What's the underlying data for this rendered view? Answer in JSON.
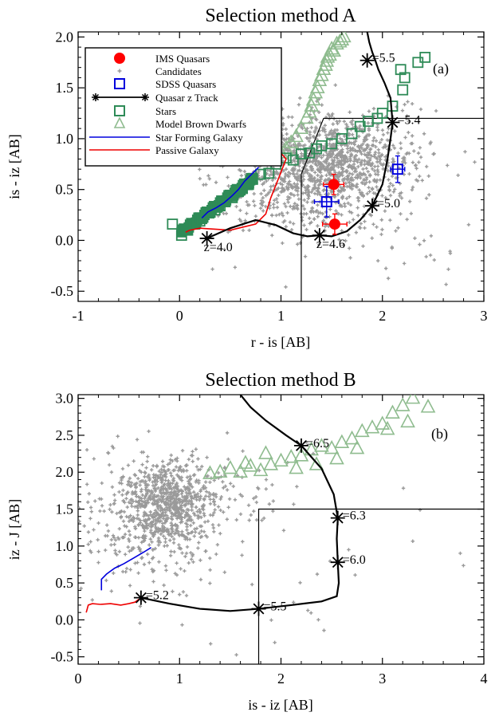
{
  "chart_data": [
    {
      "type": "scatter",
      "title": "Selection method A",
      "panel_label": "(a)",
      "xlabel": "r - is [AB]",
      "ylabel": "is - iz [AB]",
      "xlim": [
        -1,
        3
      ],
      "ylim": [
        -0.6,
        2.05
      ],
      "xticks": [
        -1,
        0,
        1,
        2,
        3
      ],
      "xtick_labels": [
        "-1",
        "0",
        "1",
        "2",
        "3"
      ],
      "yticks": [
        -0.5,
        0.0,
        0.5,
        1.0,
        1.5,
        2.0
      ],
      "ytick_labels": [
        "-0.5",
        "0.0",
        "0.5",
        "1.0",
        "1.5",
        "2.0"
      ],
      "legend_placement": "top-left",
      "legend": [
        {
          "label": "IMS Quasars",
          "symbol": "filled-circle",
          "color": "#ff0000"
        },
        {
          "label": "Candidates",
          "symbol": "plus",
          "color": "#999999"
        },
        {
          "label": "SDSS Quasars",
          "symbol": "open-square",
          "color": "#0000dd"
        },
        {
          "label": "Quasar z Track",
          "symbol": "line-asterisk",
          "color": "#000000"
        },
        {
          "label": "Stars",
          "symbol": "open-square",
          "color": "#2e8b57"
        },
        {
          "label": "Model Brown Dwarfs",
          "symbol": "open-triangle",
          "color": "#8fbc8f"
        },
        {
          "label": "Star Forming Galaxy",
          "symbol": "line",
          "color": "#0000dd"
        },
        {
          "label": "Passive Galaxy",
          "symbol": "line",
          "color": "#ee0000"
        }
      ],
      "selection_box": [
        [
          1.2,
          -0.6
        ],
        [
          1.2,
          0.65
        ],
        [
          1.42,
          1.2
        ],
        [
          3,
          1.2
        ]
      ],
      "quasar_track": {
        "x": [
          0.27,
          0.5,
          0.75,
          0.95,
          1.12,
          1.26,
          1.38,
          1.5,
          1.65,
          1.78,
          1.9,
          2.0,
          2.05,
          2.08,
          2.1,
          2.08,
          2.02,
          1.96,
          1.93,
          1.9,
          1.87,
          1.85
        ],
        "y": [
          0.02,
          0.12,
          0.2,
          0.15,
          0.07,
          0.04,
          0.05,
          0.04,
          0.09,
          0.2,
          0.34,
          0.55,
          0.8,
          1.0,
          1.16,
          1.4,
          1.55,
          1.68,
          1.77,
          1.85,
          1.95,
          2.05
        ],
        "color": "#000000",
        "markers": [
          {
            "x": 0.27,
            "y": 0.02,
            "label": "z=4.0"
          },
          {
            "x": 1.38,
            "y": 0.05,
            "label": "z=4.6"
          },
          {
            "x": 1.9,
            "y": 0.34,
            "label": "=5.0"
          },
          {
            "x": 2.1,
            "y": 1.16,
            "label": "=5.4"
          },
          {
            "x": 1.85,
            "y": 1.77,
            "label": "=5.5"
          }
        ]
      },
      "ims_quasars": {
        "x": [
          1.52,
          1.53
        ],
        "y": [
          0.55,
          0.16
        ],
        "xerr": [
          0.1,
          0.12
        ],
        "yerr": [
          0.1,
          0.1
        ],
        "color": "#ff0000"
      },
      "sdss_quasars": {
        "x": [
          1.45,
          2.15
        ],
        "y": [
          0.38,
          0.7
        ],
        "xerr": [
          0.12,
          0.07
        ],
        "yerr": [
          0.15,
          0.13
        ],
        "color": "#0000dd"
      },
      "stars": {
        "x": [
          -0.07,
          0.02,
          0.08,
          0.15,
          0.2,
          0.28,
          0.35,
          0.4,
          0.45,
          0.52,
          0.58,
          0.62,
          0.68,
          0.72,
          0.8,
          0.88,
          0.95,
          1.05,
          1.12,
          1.2,
          1.28,
          1.35,
          1.4,
          1.5,
          1.6,
          1.7,
          1.78,
          1.86,
          1.95,
          2.0,
          2.1,
          2.2,
          2.35,
          2.42,
          2.18,
          2.22
        ],
        "y": [
          0.16,
          0.05,
          0.1,
          0.16,
          0.19,
          0.27,
          0.3,
          0.34,
          0.38,
          0.42,
          0.48,
          0.51,
          0.55,
          0.6,
          0.65,
          0.66,
          0.75,
          0.81,
          0.79,
          0.85,
          0.86,
          0.9,
          0.93,
          0.95,
          1.0,
          1.05,
          1.12,
          1.17,
          1.2,
          1.25,
          1.32,
          1.48,
          1.75,
          1.8,
          1.68,
          1.6
        ],
        "color": "#2e8b57"
      },
      "brown_dwarfs": {
        "x": [
          1.0,
          1.05,
          1.1,
          1.15,
          1.2,
          1.25,
          1.3,
          1.34,
          1.38,
          1.42,
          1.45,
          1.48,
          1.5,
          1.55,
          1.6,
          1.62,
          1.28,
          1.36,
          1.44,
          1.52,
          1.4,
          1.46,
          1.32,
          1.58
        ],
        "y": [
          0.86,
          0.9,
          0.96,
          1.02,
          1.1,
          1.2,
          1.32,
          1.45,
          1.57,
          1.68,
          1.76,
          1.82,
          1.88,
          1.93,
          1.97,
          2.0,
          1.26,
          1.5,
          1.72,
          1.86,
          1.62,
          1.8,
          1.38,
          1.95
        ],
        "color": "#8fbc8f"
      },
      "star_forming_galaxy": {
        "x": [
          0.22,
          0.28,
          0.36,
          0.44,
          0.52,
          0.58,
          0.64,
          0.7,
          0.74,
          0.78
        ],
        "y": [
          0.22,
          0.28,
          0.32,
          0.37,
          0.44,
          0.5,
          0.58,
          0.64,
          0.68,
          0.72
        ],
        "color": "#0000dd"
      },
      "passive_galaxy": {
        "x": [
          0.06,
          0.1,
          0.2,
          0.35,
          0.5,
          0.58,
          0.75,
          0.85,
          0.9,
          0.98,
          1.05,
          0.98
        ],
        "y": [
          0.08,
          0.1,
          0.12,
          0.11,
          0.1,
          0.12,
          0.16,
          0.26,
          0.42,
          0.62,
          0.8,
          0.88
        ],
        "color": "#ee0000"
      }
    },
    {
      "type": "scatter",
      "title": "Selection method B",
      "panel_label": "(b)",
      "xlabel": "is - iz [AB]",
      "ylabel": "iz - J [AB]",
      "xlim": [
        0,
        4
      ],
      "ylim": [
        -0.6,
        3.05
      ],
      "xticks": [
        0,
        1,
        2,
        3,
        4
      ],
      "xtick_labels": [
        "0",
        "1",
        "2",
        "3",
        "4"
      ],
      "yticks": [
        -0.5,
        0.0,
        0.5,
        1.0,
        1.5,
        2.0,
        2.5,
        3.0
      ],
      "ytick_labels": [
        "-0.5",
        "0.0",
        "0.5",
        "1.0",
        "1.5",
        "2.0",
        "2.5",
        "3.0"
      ],
      "selection_box": [
        [
          1.78,
          -0.6
        ],
        [
          1.78,
          1.5
        ],
        [
          4,
          1.5
        ]
      ],
      "quasar_track": {
        "x": [
          0.62,
          0.9,
          1.2,
          1.5,
          1.78,
          2.1,
          2.4,
          2.55,
          2.57,
          2.56,
          2.55,
          2.56,
          2.52,
          2.4,
          2.2,
          2.05,
          1.85,
          1.7,
          1.6
        ],
        "y": [
          0.3,
          0.22,
          0.15,
          0.12,
          0.15,
          0.2,
          0.25,
          0.32,
          0.5,
          0.78,
          1.1,
          1.38,
          1.7,
          2.05,
          2.36,
          2.5,
          2.7,
          2.88,
          3.05
        ],
        "color": "#000000",
        "markers": [
          {
            "x": 0.62,
            "y": 0.3,
            "label": "=5.2"
          },
          {
            "x": 1.78,
            "y": 0.15,
            "label": "=5.5"
          },
          {
            "x": 2.56,
            "y": 0.78,
            "label": "=6.0"
          },
          {
            "x": 2.56,
            "y": 1.38,
            "label": "=6.3"
          },
          {
            "x": 2.2,
            "y": 2.36,
            "label": "=6.5"
          }
        ]
      },
      "brown_dwarfs": {
        "x": [
          1.3,
          1.4,
          1.5,
          1.6,
          1.7,
          1.8,
          1.9,
          2.0,
          2.1,
          2.2,
          2.3,
          2.4,
          2.5,
          2.6,
          2.7,
          2.8,
          2.9,
          3.0,
          3.1,
          3.2,
          3.3,
          3.45,
          2.15,
          2.35,
          2.55,
          1.65,
          1.85,
          2.75,
          3.05,
          3.25
        ],
        "y": [
          1.98,
          2.0,
          2.05,
          2.0,
          2.08,
          2.02,
          2.1,
          2.15,
          2.2,
          2.22,
          2.3,
          2.35,
          2.32,
          2.4,
          2.45,
          2.55,
          2.6,
          2.65,
          2.8,
          2.9,
          3.0,
          2.88,
          2.05,
          2.1,
          2.18,
          2.12,
          2.25,
          2.32,
          2.58,
          2.68
        ],
        "color": "#8fbc8f"
      },
      "star_forming_galaxy": {
        "x": [
          0.23,
          0.23,
          0.28,
          0.36,
          0.45,
          0.55,
          0.65,
          0.72
        ],
        "y": [
          0.4,
          0.55,
          0.62,
          0.7,
          0.76,
          0.84,
          0.92,
          0.98
        ],
        "color": "#0000dd"
      },
      "passive_galaxy": {
        "x": [
          0.08,
          0.1,
          0.14,
          0.22,
          0.32,
          0.42,
          0.5,
          0.56,
          0.6
        ],
        "y": [
          0.1,
          0.2,
          0.22,
          0.21,
          0.22,
          0.2,
          0.22,
          0.24,
          0.28
        ],
        "color": "#ee0000"
      }
    }
  ]
}
